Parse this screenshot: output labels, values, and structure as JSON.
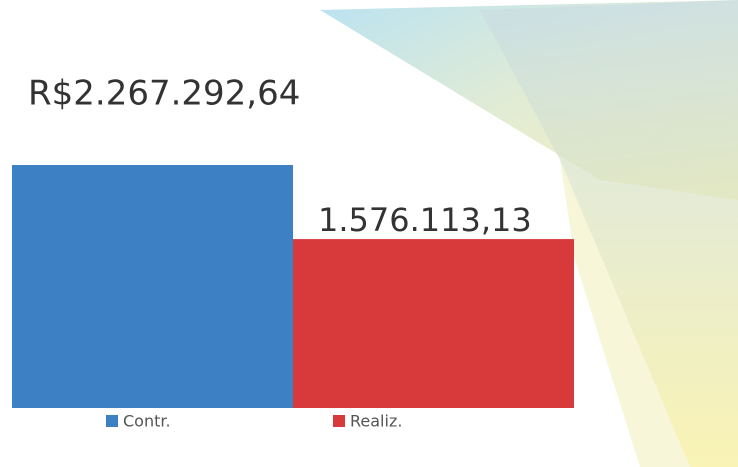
{
  "chart_data": {
    "type": "bar",
    "categories": [
      null
    ],
    "series": [
      {
        "name": "Contr.",
        "color": "#3d80c4",
        "values": [
          2267292.64
        ],
        "value_labels": [
          "R$2.267.292,64"
        ]
      },
      {
        "name": "Realiz.",
        "color": "#d8393b",
        "values": [
          1576113.13
        ],
        "value_labels": [
          "1.576.113,13"
        ]
      }
    ]
  }
}
